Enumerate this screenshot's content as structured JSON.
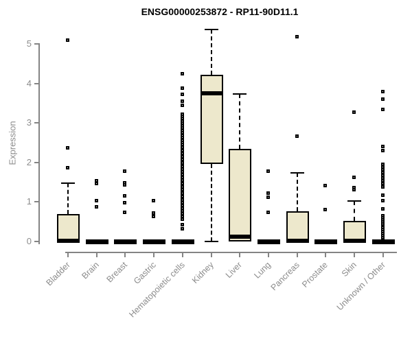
{
  "page": {
    "title": "ENSG00000253872 - RP11-90D11.1"
  },
  "chart_data": {
    "type": "boxplot",
    "title": "ENSG00000253872 - RP11-90D11.1",
    "xlabel": "",
    "ylabel": "Expression",
    "ylim": [
      0,
      5
    ],
    "yticks": [
      "0",
      "1",
      "2",
      "3",
      "4",
      "5"
    ],
    "grid": false,
    "legend_position": "none",
    "colors": {
      "box_fill": "#EDE8CC",
      "box_border": "#000000",
      "median": "#000000",
      "whisker": "#000000",
      "outlier": "#000000",
      "axis": "#848484",
      "tick_label": "#8C8C8C",
      "title": "#000000"
    },
    "categories": [
      "Bladder",
      "Brain",
      "Breast",
      "Gastric",
      "Hematopoietic cells",
      "Kidney",
      "Liver",
      "Lung",
      "Pancreas",
      "Prostate",
      "Skin",
      "Unknown / Other"
    ],
    "boxes": [
      {
        "name": "Bladder",
        "whisker_low": 0,
        "q1": 0,
        "median": 0.02,
        "q3": 0.7,
        "whisker_high": 1.48,
        "outliers": [
          5.08,
          2.36,
          1.86
        ]
      },
      {
        "name": "Brain",
        "whisker_low": 0,
        "q1": 0,
        "median": 0,
        "q3": 0,
        "whisker_high": 0,
        "outliers": [
          1.53,
          1.45,
          1.02,
          0.86
        ]
      },
      {
        "name": "Breast",
        "whisker_low": 0,
        "q1": 0,
        "median": 0,
        "q3": 0,
        "whisker_high": 0,
        "outliers": [
          1.77,
          1.48,
          1.42,
          1.15,
          0.97,
          0.73
        ]
      },
      {
        "name": "Gastric",
        "whisker_low": 0,
        "q1": 0,
        "median": 0,
        "q3": 0,
        "whisker_high": 0,
        "outliers": [
          1.02,
          0.72,
          0.63
        ]
      },
      {
        "name": "Hematopoietic cells",
        "whisker_low": 0,
        "q1": 0,
        "median": 0,
        "q3": 0,
        "whisker_high": 0,
        "outliers": [
          4.23,
          3.88,
          3.71,
          3.54,
          3.44,
          3.22,
          3.16,
          3.1,
          3.04,
          2.98,
          2.92,
          2.86,
          2.8,
          2.74,
          2.68,
          2.62,
          2.56,
          2.5,
          2.44,
          2.38,
          2.3,
          2.22,
          2.14,
          2.06,
          1.98,
          1.9,
          1.83,
          1.76,
          1.69,
          1.62,
          1.55,
          1.46,
          1.38,
          1.31,
          1.22,
          1.12,
          1.05,
          0.97,
          0.9,
          0.83,
          0.76,
          0.69,
          0.62,
          0.55,
          0.41,
          0.32
        ]
      },
      {
        "name": "Kidney",
        "whisker_low": 0,
        "q1": 1.97,
        "median": 3.75,
        "q3": 4.22,
        "whisker_high": 5.37,
        "outliers": []
      },
      {
        "name": "Liver",
        "whisker_low": 0,
        "q1": 0,
        "median": 0.13,
        "q3": 2.34,
        "whisker_high": 3.74,
        "outliers": []
      },
      {
        "name": "Lung",
        "whisker_low": 0,
        "q1": 0,
        "median": 0,
        "q3": 0,
        "whisker_high": 0,
        "outliers": [
          1.77,
          1.22,
          1.11,
          0.73
        ]
      },
      {
        "name": "Pancreas",
        "whisker_low": 0,
        "q1": 0,
        "median": 0.02,
        "q3": 0.76,
        "whisker_high": 1.74,
        "outliers": [
          5.17,
          2.65
        ]
      },
      {
        "name": "Prostate",
        "whisker_low": 0,
        "q1": 0,
        "median": 0,
        "q3": 0,
        "whisker_high": 0,
        "outliers": [
          1.41,
          0.8
        ]
      },
      {
        "name": "Skin",
        "whisker_low": 0,
        "q1": 0,
        "median": 0.02,
        "q3": 0.52,
        "whisker_high": 1.02,
        "outliers": [
          3.26,
          1.61,
          1.36,
          1.31
        ]
      },
      {
        "name": "Unknown / Other",
        "whisker_low": 0,
        "q1": 0,
        "median": 0,
        "q3": 0,
        "whisker_high": 0,
        "outliers": [
          3.78,
          3.59,
          3.34,
          2.39,
          2.3,
          1.94,
          1.87,
          1.8,
          1.73,
          1.66,
          1.59,
          1.52,
          1.45,
          1.38,
          1.16,
          1.03,
          0.82,
          0.64,
          0.59,
          0.54,
          0.49,
          0.44,
          0.39,
          0.34,
          0.29,
          0.24,
          0.19,
          0.14,
          0.09
        ]
      }
    ]
  }
}
